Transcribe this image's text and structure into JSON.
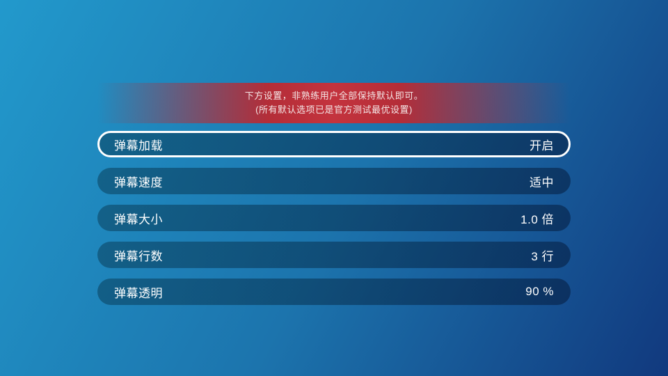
{
  "notice": {
    "line1": "下方设置，非熟练用户全部保持默认即可。",
    "line2": "(所有默认选项已是官方测试最优设置)"
  },
  "settings": [
    {
      "label": "弹幕加载",
      "value": "开启",
      "focused": true
    },
    {
      "label": "弹幕速度",
      "value": "适中",
      "focused": false
    },
    {
      "label": "弹幕大小",
      "value": "1.0 倍",
      "focused": false
    },
    {
      "label": "弹幕行数",
      "value": "3 行",
      "focused": false
    },
    {
      "label": "弹幕透明",
      "value": "90 %",
      "focused": false
    }
  ],
  "colors": {
    "background_start": "#2299CC",
    "background_end": "#11397E",
    "banner_red": "#C52F38",
    "focus_ring": "#FFFFFF",
    "text": "#FFFFFF"
  }
}
